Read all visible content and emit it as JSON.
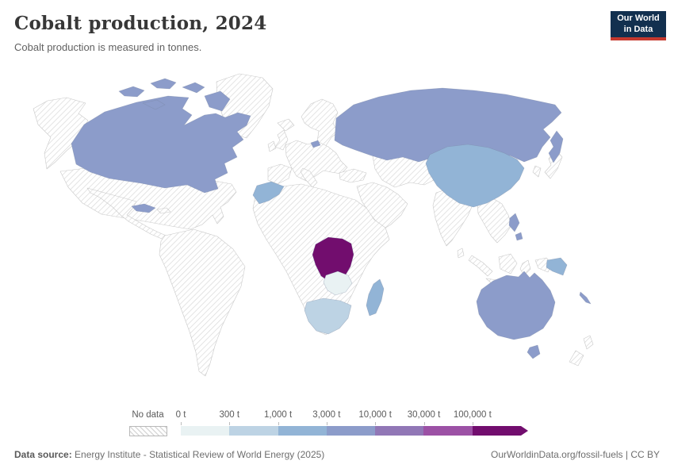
{
  "header": {
    "title": "Cobalt production, 2024",
    "subtitle": "Cobalt production is measured in tonnes.",
    "logo": {
      "line1": "Our World",
      "line2": "in Data"
    }
  },
  "legend": {
    "no_data_label": "No data",
    "labels": [
      "0 t",
      "300 t",
      "1,000 t",
      "3,000 t",
      "10,000 t",
      "30,000 t",
      "100,000 t"
    ],
    "colors": [
      "#e9f2f3",
      "#bdd3e4",
      "#92b4d6",
      "#8c9cca",
      "#9177b6",
      "#9c51a5",
      "#720d6e"
    ],
    "no_data_hatch_color": "#d9d9d9"
  },
  "map": {
    "ocean_color": "#ffffff",
    "border_color": "#c9c9c9",
    "countries": [
      {
        "id": "canada",
        "name": "Canada",
        "bin": 3
      },
      {
        "id": "cuba",
        "name": "Cuba",
        "bin": 3
      },
      {
        "id": "russia",
        "name": "Russia",
        "bin": 3
      },
      {
        "id": "china",
        "name": "China",
        "bin": 2
      },
      {
        "id": "morocco",
        "name": "Morocco",
        "bin": 2
      },
      {
        "id": "drc",
        "name": "Democratic Republic of Congo",
        "bin": 6
      },
      {
        "id": "zambia",
        "name": "Zambia",
        "bin": 0
      },
      {
        "id": "south-africa",
        "name": "South Africa",
        "bin": 1
      },
      {
        "id": "madagascar",
        "name": "Madagascar",
        "bin": 2
      },
      {
        "id": "australia",
        "name": "Australia",
        "bin": 3
      },
      {
        "id": "png",
        "name": "Papua New Guinea",
        "bin": 2
      },
      {
        "id": "philippines",
        "name": "Philippines",
        "bin": 3
      },
      {
        "id": "new-caledonia",
        "name": "New Caledonia",
        "bin": 3
      }
    ]
  },
  "footer": {
    "source_label": "Data source:",
    "source_text": "Energy Institute - Statistical Review of World Energy (2025)",
    "attribution": "OurWorldinData.org/fossil-fuels | CC BY"
  },
  "chart_data": {
    "type": "choropleth",
    "title": "Cobalt production, 2024",
    "subtitle": "Cobalt production is measured in tonnes.",
    "unit": "tonnes",
    "legend_position": "bottom",
    "bin_thresholds": [
      "0 t",
      "300 t",
      "1,000 t",
      "3,000 t",
      "10,000 t",
      "30,000 t",
      "100,000 t"
    ],
    "bin_colors": [
      "#e9f2f3",
      "#bdd3e4",
      "#92b4d6",
      "#8c9cca",
      "#9177b6",
      "#9c51a5",
      "#720d6e"
    ],
    "countries": [
      {
        "name": "Democratic Republic of Congo",
        "range": "more than 100,000 t"
      },
      {
        "name": "Canada",
        "range": "3,000–10,000 t"
      },
      {
        "name": "Russia",
        "range": "3,000–10,000 t"
      },
      {
        "name": "Cuba",
        "range": "3,000–10,000 t"
      },
      {
        "name": "Australia",
        "range": "3,000–10,000 t"
      },
      {
        "name": "Philippines",
        "range": "3,000–10,000 t"
      },
      {
        "name": "New Caledonia",
        "range": "3,000–10,000 t"
      },
      {
        "name": "China",
        "range": "1,000–3,000 t"
      },
      {
        "name": "Morocco",
        "range": "1,000–3,000 t"
      },
      {
        "name": "Madagascar",
        "range": "1,000–3,000 t"
      },
      {
        "name": "Papua New Guinea",
        "range": "1,000–3,000 t"
      },
      {
        "name": "South Africa",
        "range": "300–1,000 t"
      },
      {
        "name": "Zambia",
        "range": "0–300 t"
      },
      {
        "name": "All other countries/regions shown hatched",
        "range": "No data"
      }
    ]
  }
}
